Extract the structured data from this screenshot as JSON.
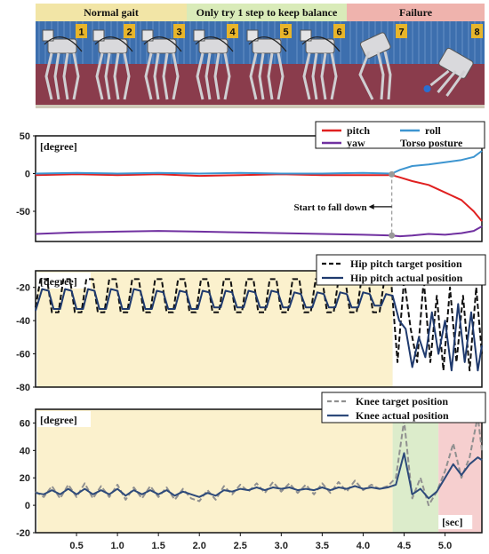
{
  "photo_strip": {
    "phases": [
      {
        "label": "Normal gait",
        "color": "#f2e5a6",
        "frames": [
          "1",
          "2",
          "3"
        ]
      },
      {
        "label": "Only try 1 step to keep balance",
        "color": "#d9ebb9",
        "frames": [
          "4",
          "5",
          "6"
        ]
      },
      {
        "label": "Failure",
        "color": "#efb3ad",
        "frames": [
          "7",
          "8"
        ]
      }
    ],
    "badge_color": "#e8b52a"
  },
  "x_axis": {
    "ticks": [
      "0.5",
      "1.0",
      "1.5",
      "2.0",
      "2.5",
      "3.0",
      "3.5",
      "4.0",
      "4.5",
      "5.0"
    ],
    "tick_values": [
      0.5,
      1.0,
      1.5,
      2.0,
      2.5,
      3.0,
      3.5,
      4.0,
      4.5,
      5.0
    ],
    "range": [
      0,
      5.45
    ]
  },
  "chart_data": [
    {
      "type": "line",
      "unit_label": "[degree]",
      "ylim": [
        -90,
        50
      ],
      "yticks": [
        "50",
        "0",
        "-50"
      ],
      "ytick_values": [
        50,
        0,
        -50
      ],
      "legend": {
        "title": "Torso posture",
        "placement": "top-right"
      },
      "series": [
        {
          "name": "pitch",
          "color": "#e02020",
          "x": [
            0,
            0.5,
            1.0,
            1.5,
            2.0,
            2.5,
            3.0,
            3.5,
            4.0,
            4.35,
            4.45,
            4.6,
            4.8,
            5.0,
            5.2,
            5.35,
            5.45
          ],
          "y": [
            -2,
            -1,
            -2,
            -1,
            -3,
            -2,
            -1,
            -2,
            -2,
            -2,
            -5,
            -10,
            -15,
            -25,
            -35,
            -50,
            -63
          ]
        },
        {
          "name": "roll",
          "color": "#3d95d0",
          "x": [
            0,
            0.5,
            1.0,
            1.5,
            2.0,
            2.5,
            3.0,
            3.5,
            4.0,
            4.35,
            4.45,
            4.6,
            4.8,
            5.0,
            5.2,
            5.35,
            5.45
          ],
          "y": [
            0,
            1,
            0,
            1,
            0,
            1,
            0,
            0,
            1,
            0,
            5,
            10,
            12,
            15,
            18,
            22,
            30
          ]
        },
        {
          "name": "yaw",
          "color": "#7030a0",
          "x": [
            0,
            0.5,
            1.0,
            1.5,
            2.0,
            2.5,
            3.0,
            3.5,
            4.0,
            4.35,
            4.45,
            4.6,
            4.8,
            5.0,
            5.2,
            5.35,
            5.45
          ],
          "y": [
            -80,
            -78,
            -77,
            -76,
            -77,
            -78,
            -79,
            -80,
            -81,
            -82,
            -83,
            -82,
            -80,
            -81,
            -79,
            -76,
            -70
          ]
        }
      ],
      "annotation": {
        "text": "Start to fall down",
        "x": 4.35
      }
    },
    {
      "type": "line",
      "unit_label": "[degree]",
      "ylim": [
        -80,
        -10
      ],
      "yticks": [
        "-20",
        "-40",
        "-60",
        "-80"
      ],
      "ytick_values": [
        -20,
        -40,
        -60,
        -80
      ],
      "legend": {
        "placement": "top-right"
      },
      "series": [
        {
          "name": "Hip pitch target position",
          "color": "#111111",
          "dash": true,
          "x": [
            0,
            0.06,
            0.14,
            0.2,
            0.28,
            0.34,
            0.42,
            0.48,
            0.56,
            0.62,
            0.7,
            0.76,
            0.84,
            0.9,
            0.98,
            1.04,
            1.12,
            1.18,
            1.26,
            1.32,
            1.4,
            1.46,
            1.54,
            1.6,
            1.68,
            1.74,
            1.82,
            1.88,
            1.96,
            2.02,
            2.1,
            2.16,
            2.24,
            2.3,
            2.38,
            2.44,
            2.52,
            2.58,
            2.66,
            2.72,
            2.8,
            2.86,
            2.94,
            3.0,
            3.08,
            3.14,
            3.22,
            3.28,
            3.36,
            3.42,
            3.5,
            3.56,
            3.64,
            3.7,
            3.78,
            3.84,
            3.92,
            3.98,
            4.06,
            4.12,
            4.2,
            4.26,
            4.34,
            4.42,
            4.5,
            4.58,
            4.66,
            4.74,
            4.82,
            4.9,
            4.98,
            5.06,
            5.14,
            5.22,
            5.3,
            5.38,
            5.45
          ],
          "y": [
            -32,
            -15,
            -15,
            -35,
            -35,
            -15,
            -15,
            -35,
            -35,
            -15,
            -15,
            -35,
            -35,
            -15,
            -15,
            -35,
            -35,
            -15,
            -15,
            -35,
            -35,
            -15,
            -15,
            -35,
            -35,
            -15,
            -15,
            -35,
            -35,
            -15,
            -15,
            -35,
            -35,
            -15,
            -15,
            -35,
            -35,
            -15,
            -15,
            -35,
            -35,
            -15,
            -15,
            -35,
            -35,
            -15,
            -15,
            -35,
            -35,
            -15,
            -15,
            -35,
            -35,
            -15,
            -15,
            -35,
            -35,
            -15,
            -15,
            -35,
            -35,
            -15,
            -15,
            -65,
            -15,
            -45,
            -65,
            -15,
            -65,
            -25,
            -70,
            -20,
            -65,
            -25,
            -70,
            -20,
            -60
          ]
        },
        {
          "name": "Hip pitch actual position",
          "color": "#1f3a6e",
          "dash": false,
          "x": [
            0,
            0.08,
            0.16,
            0.22,
            0.3,
            0.36,
            0.44,
            0.5,
            0.58,
            0.64,
            0.72,
            0.78,
            0.86,
            0.92,
            1.0,
            1.06,
            1.14,
            1.2,
            1.28,
            1.34,
            1.42,
            1.48,
            1.56,
            1.62,
            1.7,
            1.76,
            1.84,
            1.9,
            1.98,
            2.04,
            2.12,
            2.18,
            2.26,
            2.32,
            2.4,
            2.46,
            2.54,
            2.6,
            2.68,
            2.74,
            2.82,
            2.88,
            2.96,
            3.02,
            3.1,
            3.16,
            3.24,
            3.3,
            3.38,
            3.44,
            3.52,
            3.58,
            3.66,
            3.72,
            3.8,
            3.86,
            3.94,
            4.0,
            4.08,
            4.14,
            4.22,
            4.28,
            4.36,
            4.44,
            4.52,
            4.6,
            4.68,
            4.76,
            4.84,
            4.92,
            5.0,
            5.08,
            5.16,
            5.24,
            5.32,
            5.4,
            5.45
          ],
          "y": [
            -34,
            -21,
            -22,
            -33,
            -33,
            -21,
            -22,
            -33,
            -33,
            -21,
            -22,
            -33,
            -33,
            -21,
            -22,
            -33,
            -33,
            -21,
            -22,
            -33,
            -33,
            -22,
            -23,
            -33,
            -33,
            -22,
            -23,
            -33,
            -33,
            -22,
            -23,
            -32,
            -32,
            -22,
            -23,
            -32,
            -32,
            -22,
            -23,
            -32,
            -32,
            -22,
            -23,
            -32,
            -32,
            -23,
            -24,
            -32,
            -32,
            -23,
            -24,
            -32,
            -32,
            -23,
            -24,
            -32,
            -32,
            -23,
            -24,
            -31,
            -31,
            -24,
            -25,
            -40,
            -45,
            -68,
            -50,
            -62,
            -35,
            -60,
            -40,
            -70,
            -30,
            -65,
            -35,
            -70,
            -55
          ]
        }
      ]
    },
    {
      "type": "line",
      "unit_label": "[degree]",
      "ylim": [
        -20,
        70
      ],
      "yticks": [
        "60",
        "40",
        "20",
        "0",
        "-20"
      ],
      "ytick_values": [
        60,
        40,
        20,
        0,
        -20
      ],
      "legend": {
        "placement": "top-right"
      },
      "x_unit_label": "[sec]",
      "series": [
        {
          "name": "Knee target position",
          "color": "#909090",
          "dash": true,
          "x": [
            0,
            0.1,
            0.2,
            0.3,
            0.4,
            0.5,
            0.6,
            0.7,
            0.8,
            0.9,
            1.0,
            1.1,
            1.2,
            1.3,
            1.4,
            1.5,
            1.6,
            1.7,
            1.8,
            1.9,
            2.0,
            2.1,
            2.2,
            2.3,
            2.4,
            2.5,
            2.6,
            2.7,
            2.8,
            2.9,
            3.0,
            3.1,
            3.2,
            3.3,
            3.4,
            3.5,
            3.6,
            3.7,
            3.8,
            3.9,
            4.0,
            4.1,
            4.2,
            4.3,
            4.4,
            4.5,
            4.6,
            4.7,
            4.8,
            4.9,
            5.0,
            5.1,
            5.2,
            5.3,
            5.4,
            5.45
          ],
          "y": [
            10,
            6,
            14,
            5,
            15,
            6,
            16,
            5,
            14,
            6,
            15,
            4,
            13,
            5,
            14,
            6,
            13,
            4,
            12,
            5,
            3,
            11,
            4,
            14,
            8,
            15,
            10,
            16,
            9,
            17,
            10,
            16,
            9,
            15,
            8,
            16,
            9,
            17,
            10,
            18,
            11,
            15,
            12,
            14,
            20,
            62,
            5,
            20,
            0,
            10,
            25,
            45,
            20,
            35,
            65,
            40
          ]
        },
        {
          "name": "Knee actual position",
          "color": "#2e4a7a",
          "dash": false,
          "x": [
            0,
            0.1,
            0.2,
            0.3,
            0.4,
            0.5,
            0.6,
            0.7,
            0.8,
            0.9,
            1.0,
            1.1,
            1.2,
            1.3,
            1.4,
            1.5,
            1.6,
            1.7,
            1.8,
            1.9,
            2.0,
            2.1,
            2.2,
            2.3,
            2.4,
            2.5,
            2.6,
            2.7,
            2.8,
            2.9,
            3.0,
            3.1,
            3.2,
            3.3,
            3.4,
            3.5,
            3.6,
            3.7,
            3.8,
            3.9,
            4.0,
            4.1,
            4.2,
            4.3,
            4.4,
            4.5,
            4.6,
            4.7,
            4.8,
            4.9,
            5.0,
            5.1,
            5.2,
            5.3,
            5.4,
            5.45
          ],
          "y": [
            9,
            8,
            11,
            8,
            12,
            8,
            12,
            8,
            11,
            8,
            12,
            7,
            11,
            8,
            11,
            8,
            11,
            7,
            10,
            8,
            6,
            9,
            7,
            11,
            10,
            12,
            11,
            13,
            11,
            13,
            12,
            13,
            11,
            12,
            11,
            13,
            11,
            13,
            12,
            14,
            12,
            13,
            12,
            13,
            15,
            38,
            8,
            12,
            5,
            10,
            20,
            30,
            22,
            30,
            35,
            33
          ]
        }
      ]
    }
  ]
}
